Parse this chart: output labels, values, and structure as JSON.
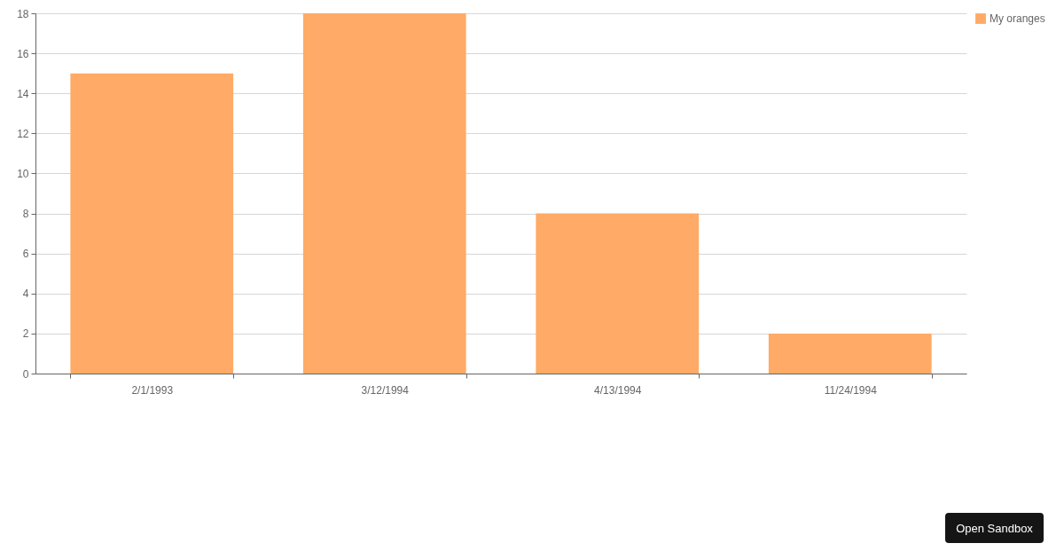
{
  "chart_data": {
    "type": "bar",
    "categories": [
      "2/1/1993",
      "3/12/1994",
      "4/13/1994",
      "11/24/1994"
    ],
    "series": [
      {
        "name": "My oranges",
        "color": "#ffaa66",
        "values": [
          15,
          18,
          8,
          2
        ]
      }
    ],
    "ylim": [
      0,
      18
    ],
    "yticks": [
      0,
      2,
      4,
      6,
      8,
      10,
      12,
      14,
      16,
      18
    ],
    "grid": "y",
    "legend": "top right",
    "annotations": [
      "Open Sandbox"
    ]
  }
}
